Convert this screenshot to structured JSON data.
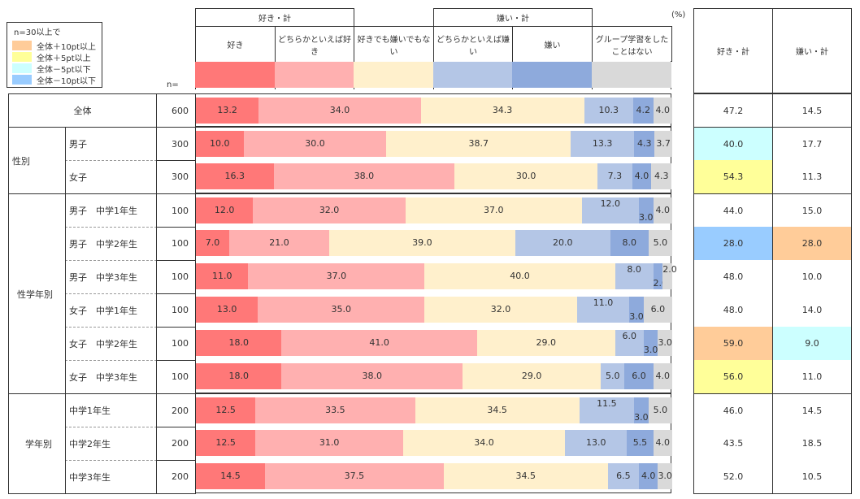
{
  "legend": {
    "title": "n=30以上で",
    "items": [
      {
        "label": "全体＋10pt以上",
        "color": "#ffcc99"
      },
      {
        "label": "全体＋5pt以上",
        "color": "#ffff99"
      },
      {
        "label": "全体－5pt以下",
        "color": "#ccffff"
      },
      {
        "label": "全体－10pt以下",
        "color": "#99ccff"
      }
    ]
  },
  "n_label": "n=",
  "unit": "(%)",
  "chart_data": {
    "type": "bar",
    "stacked": true,
    "orientation": "horizontal",
    "group_headers": [
      {
        "label": "好き・計",
        "span": [
          0,
          1
        ]
      },
      {
        "label": "嫌い・計",
        "span": [
          3,
          4
        ]
      }
    ],
    "series": [
      {
        "name": "好き",
        "color": "#ff7878"
      },
      {
        "name": "どちらかといえば好き",
        "color": "#ffb0b0"
      },
      {
        "name": "好きでも嫌いでもない",
        "color": "#fff0cc"
      },
      {
        "name": "どちらかといえば嫌い",
        "color": "#b4c6e6"
      },
      {
        "name": "嫌い",
        "color": "#8eaadc"
      },
      {
        "name": "グループ学習をしたことはない",
        "color": "#d9d9d9"
      }
    ],
    "summary_headers": [
      "好き・計",
      "嫌い・計"
    ],
    "groups": [
      {
        "label": "",
        "rows": [
          {
            "label": "全体",
            "n": "600",
            "values": [
              13.2,
              34.0,
              34.3,
              10.3,
              4.2,
              4.0
            ],
            "like": "47.2",
            "dislike": "14.5",
            "like_hl": "",
            "dislike_hl": ""
          }
        ]
      },
      {
        "label": "性別",
        "rows": [
          {
            "label": "男子",
            "n": "300",
            "values": [
              10.0,
              30.0,
              38.7,
              13.3,
              4.3,
              3.7
            ],
            "like": "40.0",
            "dislike": "17.7",
            "like_hl": "#ccffff",
            "dislike_hl": ""
          },
          {
            "label": "女子",
            "n": "300",
            "values": [
              16.3,
              38.0,
              30.0,
              7.3,
              4.0,
              4.3
            ],
            "like": "54.3",
            "dislike": "11.3",
            "like_hl": "#ffff99",
            "dislike_hl": ""
          }
        ]
      },
      {
        "label": "性学年別",
        "rows": [
          {
            "label": "男子　中学1年生",
            "n": "100",
            "values": [
              12.0,
              32.0,
              37.0,
              12.0,
              3.0,
              4.0
            ],
            "like": "44.0",
            "dislike": "15.0",
            "like_hl": "",
            "dislike_hl": ""
          },
          {
            "label": "男子　中学2年生",
            "n": "100",
            "values": [
              7.0,
              21.0,
              39.0,
              20.0,
              8.0,
              5.0
            ],
            "like": "28.0",
            "dislike": "28.0",
            "like_hl": "#99ccff",
            "dislike_hl": "#ffcc99"
          },
          {
            "label": "男子　中学3年生",
            "n": "100",
            "values": [
              11.0,
              37.0,
              40.0,
              8.0,
              2.0,
              2.0
            ],
            "like": "48.0",
            "dislike": "10.0",
            "like_hl": "",
            "dislike_hl": ""
          },
          {
            "label": "女子　中学1年生",
            "n": "100",
            "values": [
              13.0,
              35.0,
              32.0,
              11.0,
              3.0,
              6.0
            ],
            "like": "48.0",
            "dislike": "14.0",
            "like_hl": "",
            "dislike_hl": ""
          },
          {
            "label": "女子　中学2年生",
            "n": "100",
            "values": [
              18.0,
              41.0,
              29.0,
              6.0,
              3.0,
              3.0
            ],
            "like": "59.0",
            "dislike": "9.0",
            "like_hl": "#ffcc99",
            "dislike_hl": "#ccffff"
          },
          {
            "label": "女子　中学3年生",
            "n": "100",
            "values": [
              18.0,
              38.0,
              29.0,
              5.0,
              6.0,
              4.0
            ],
            "like": "56.0",
            "dislike": "11.0",
            "like_hl": "#ffff99",
            "dislike_hl": ""
          }
        ]
      },
      {
        "label": "学年別",
        "rows": [
          {
            "label": "中学1年生",
            "n": "200",
            "values": [
              12.5,
              33.5,
              34.5,
              11.5,
              3.0,
              5.0
            ],
            "like": "46.0",
            "dislike": "14.5",
            "like_hl": "",
            "dislike_hl": ""
          },
          {
            "label": "中学2年生",
            "n": "200",
            "values": [
              12.5,
              31.0,
              34.0,
              13.0,
              5.5,
              4.0
            ],
            "like": "43.5",
            "dislike": "18.5",
            "like_hl": "",
            "dislike_hl": ""
          },
          {
            "label": "中学3年生",
            "n": "200",
            "values": [
              14.5,
              37.5,
              34.5,
              6.5,
              4.0,
              3.0
            ],
            "like": "52.0",
            "dislike": "10.5",
            "like_hl": "",
            "dislike_hl": ""
          }
        ]
      }
    ]
  }
}
